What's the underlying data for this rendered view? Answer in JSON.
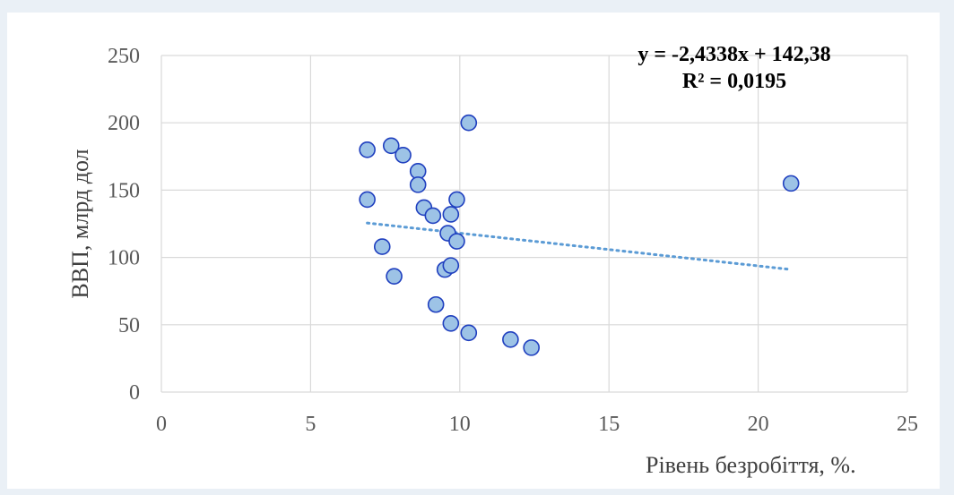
{
  "chart_data": {
    "type": "scatter",
    "xlabel": "Рівень безробіття, %.",
    "ylabel": "ВВП, млрд дол",
    "xlim": [
      0,
      25
    ],
    "ylim": [
      0,
      250
    ],
    "x_ticks": [
      0,
      5,
      10,
      15,
      20,
      25
    ],
    "y_ticks": [
      0,
      50,
      100,
      150,
      200,
      250
    ],
    "grid": "major both axes",
    "trendline": {
      "type": "linear",
      "style": "dotted",
      "color": "#5b9bd5",
      "slope": -2.4338,
      "intercept": 142.38,
      "x_range": [
        6.9,
        21.1
      ],
      "equation_label": "y = -2,4338x + 142,38",
      "r2_label": "R² = 0,0195"
    },
    "marker": {
      "fill": "#9dc3e6",
      "stroke": "#1f3fbf"
    },
    "points": [
      {
        "x": 6.9,
        "y": 180
      },
      {
        "x": 6.9,
        "y": 143
      },
      {
        "x": 7.4,
        "y": 108
      },
      {
        "x": 7.7,
        "y": 183
      },
      {
        "x": 7.8,
        "y": 86
      },
      {
        "x": 8.1,
        "y": 176
      },
      {
        "x": 8.6,
        "y": 164
      },
      {
        "x": 8.6,
        "y": 154
      },
      {
        "x": 8.8,
        "y": 137
      },
      {
        "x": 9.1,
        "y": 131
      },
      {
        "x": 9.2,
        "y": 65
      },
      {
        "x": 9.5,
        "y": 91
      },
      {
        "x": 9.6,
        "y": 118
      },
      {
        "x": 9.7,
        "y": 132
      },
      {
        "x": 9.7,
        "y": 94
      },
      {
        "x": 9.7,
        "y": 51
      },
      {
        "x": 9.9,
        "y": 143
      },
      {
        "x": 9.9,
        "y": 112
      },
      {
        "x": 10.3,
        "y": 200
      },
      {
        "x": 10.3,
        "y": 44
      },
      {
        "x": 11.7,
        "y": 39
      },
      {
        "x": 12.4,
        "y": 33
      },
      {
        "x": 21.1,
        "y": 155
      }
    ]
  }
}
